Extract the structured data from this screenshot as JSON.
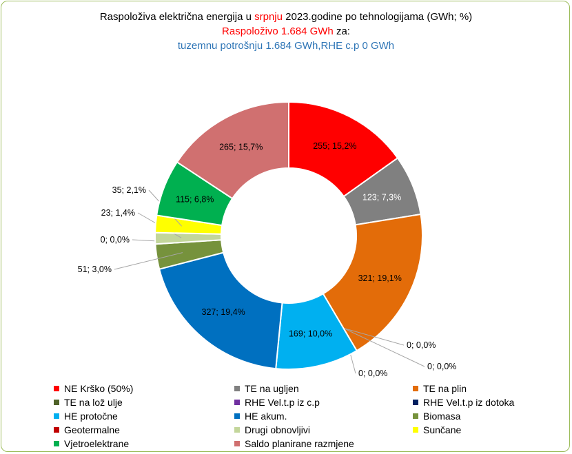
{
  "title": {
    "line1_pre": "Raspoloživa električna energija  u ",
    "line1_month": "srpnju",
    "line1_post": "  2023.godine po tehnologijama (GWh; %)",
    "line2_red": "Raspoloživo 1.684  GWh",
    "line2_post": " za:",
    "line3": "tuzemnu potrošnju  1.684 GWh,RHE c.p  0 GWh"
  },
  "chart_data": {
    "type": "pie",
    "donut": true,
    "unit": "GWh",
    "legend_position": "bottom",
    "series": [
      {
        "name": "NE Krško (50%)",
        "value": 255,
        "percent": 15.2,
        "label": "255; 15,2%",
        "color": "#ff0000"
      },
      {
        "name": "TE na ugljen",
        "value": 123,
        "percent": 7.3,
        "label": "123; 7,3%",
        "color": "#808080"
      },
      {
        "name": "TE na plin",
        "value": 321,
        "percent": 19.1,
        "label": "321; 19,1%",
        "color": "#e36c09"
      },
      {
        "name": "TE na lož ulje",
        "value": 0,
        "percent": 0.0,
        "label": "0; 0,0%",
        "color": "#4f6228"
      },
      {
        "name": "RHE Vel.t.p iz c.p",
        "value": 0,
        "percent": 0.0,
        "label": "0; 0,0%",
        "color": "#7030a0"
      },
      {
        "name": "RHE Vel.t.p iz  dotoka",
        "value": 0,
        "percent": 0.0,
        "label": "0; 0,0%",
        "color": "#002060"
      },
      {
        "name": "HE protočne",
        "value": 169,
        "percent": 10.0,
        "label": "169; 10,0%",
        "color": "#00b0f0"
      },
      {
        "name": "HE akum.",
        "value": 327,
        "percent": 19.4,
        "label": "327; 19,4%",
        "color": "#0070c0"
      },
      {
        "name": "Biomasa",
        "value": 51,
        "percent": 3.0,
        "label": "51; 3,0%",
        "color": "#76923c"
      },
      {
        "name": "Geotermalne",
        "value": 0,
        "percent": 0.0,
        "label": "0; 0,0%",
        "color": "#c00000"
      },
      {
        "name": "Drugi obnovljivi",
        "value": 23,
        "percent": 1.4,
        "label": "23; 1,4%",
        "color": "#c3d69b"
      },
      {
        "name": "Sunčane",
        "value": 35,
        "percent": 2.1,
        "label": "35; 2,1%",
        "color": "#ffff00"
      },
      {
        "name": "Vjetroelektrane",
        "value": 115,
        "percent": 6.8,
        "label": "115; 6,8%",
        "color": "#00b050"
      },
      {
        "name": "Saldo planirane razmjene",
        "value": 265,
        "percent": 15.7,
        "label": "265; 15,7%",
        "color": "#d07070"
      }
    ]
  }
}
